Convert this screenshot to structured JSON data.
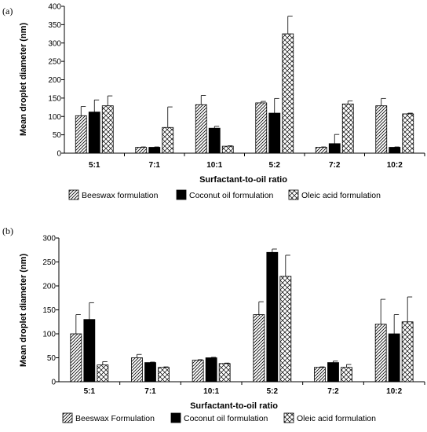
{
  "panel_labels": [
    "(a)",
    "(b)"
  ],
  "colors": {
    "bar_stroke": "#000000",
    "coconut_fill": "#000000",
    "hatch": "#000000",
    "background": "#ffffff"
  },
  "chart_data": [
    {
      "type": "bar",
      "title": "",
      "xlabel": "Surfactant-to-oil ratio",
      "ylabel": "Mean droplet diameter (nm)",
      "ylim": [
        0,
        400
      ],
      "yticks": [
        0,
        50,
        100,
        150,
        200,
        250,
        300,
        350,
        400
      ],
      "legend_position": "bottom",
      "categories": [
        "5:1",
        "7:1",
        "10:1",
        "5:2",
        "7:2",
        "10:2"
      ],
      "series": [
        {
          "name": "Beeswax formulation",
          "pattern": "diagonal",
          "values": [
            102,
            16,
            132,
            137,
            16,
            129
          ],
          "errors": [
            25,
            1,
            25,
            4,
            1,
            20
          ]
        },
        {
          "name": "Coconut oil formulation",
          "pattern": "solid",
          "values": [
            112,
            16,
            68,
            109,
            26,
            16
          ],
          "errors": [
            33,
            1,
            5,
            40,
            25,
            1
          ]
        },
        {
          "name": "Oleic acid formulation",
          "pattern": "crosshatch",
          "values": [
            129,
            70,
            19,
            325,
            134,
            107
          ],
          "errors": [
            27,
            56,
            1,
            48,
            8,
            2
          ]
        }
      ]
    },
    {
      "type": "bar",
      "title": "",
      "xlabel": "Surfactant-to-oil ratio",
      "ylabel": "Mean droplet diameter (nm)",
      "ylim": [
        0,
        300
      ],
      "yticks": [
        0,
        50,
        100,
        150,
        200,
        250,
        300
      ],
      "legend_position": "bottom",
      "categories": [
        "5:1",
        "7:1",
        "10:1",
        "5:2",
        "7:2",
        "10:2"
      ],
      "series": [
        {
          "name": "Beeswax Formulation",
          "pattern": "diagonal",
          "values": [
            100,
            50,
            45,
            140,
            30,
            120
          ],
          "errors": [
            40,
            7,
            1,
            27,
            1,
            52
          ]
        },
        {
          "name": "Coconut oil formulation",
          "pattern": "solid",
          "values": [
            130,
            40,
            50,
            270,
            40,
            100
          ],
          "errors": [
            35,
            1,
            1,
            7,
            3,
            40
          ]
        },
        {
          "name": "Oleic acid formulation",
          "pattern": "crosshatch",
          "values": [
            35,
            30,
            38,
            220,
            30,
            125
          ],
          "errors": [
            7,
            1,
            1,
            44,
            6,
            52
          ]
        }
      ]
    }
  ]
}
